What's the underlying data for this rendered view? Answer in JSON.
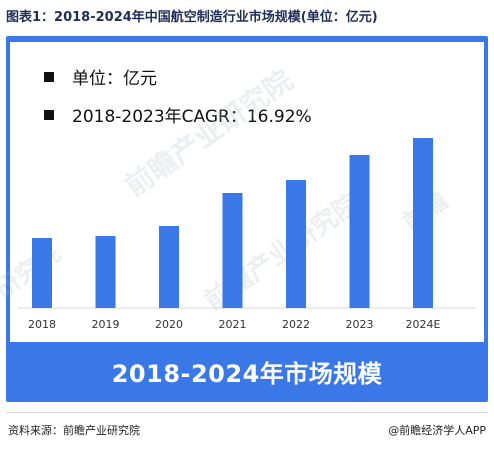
{
  "title": "图表1：2018-2024年中国航空制造行业市场规模(单位：亿元)",
  "legend": {
    "unit": "单位：亿元",
    "cagr": "2018-2023年CAGR：16.92%"
  },
  "banner": "2018-2024年市场规模",
  "footer": {
    "source": "资料来源：前瞻产业研究院",
    "brand": "@前瞻经济学人APP"
  },
  "colors": {
    "bar": "#3a78e8",
    "frame": "#3a78e8",
    "title": "#1f2d5a"
  },
  "chart_data": {
    "type": "bar",
    "categories": [
      "2018",
      "2019",
      "2020",
      "2021",
      "2022",
      "2023",
      "2024E"
    ],
    "values": [
      70,
      72,
      82,
      115,
      128,
      153,
      170
    ],
    "title": "",
    "xlabel": "",
    "ylabel": "",
    "ylim": [
      0,
      200
    ],
    "grid": false,
    "legend": "top-left"
  }
}
